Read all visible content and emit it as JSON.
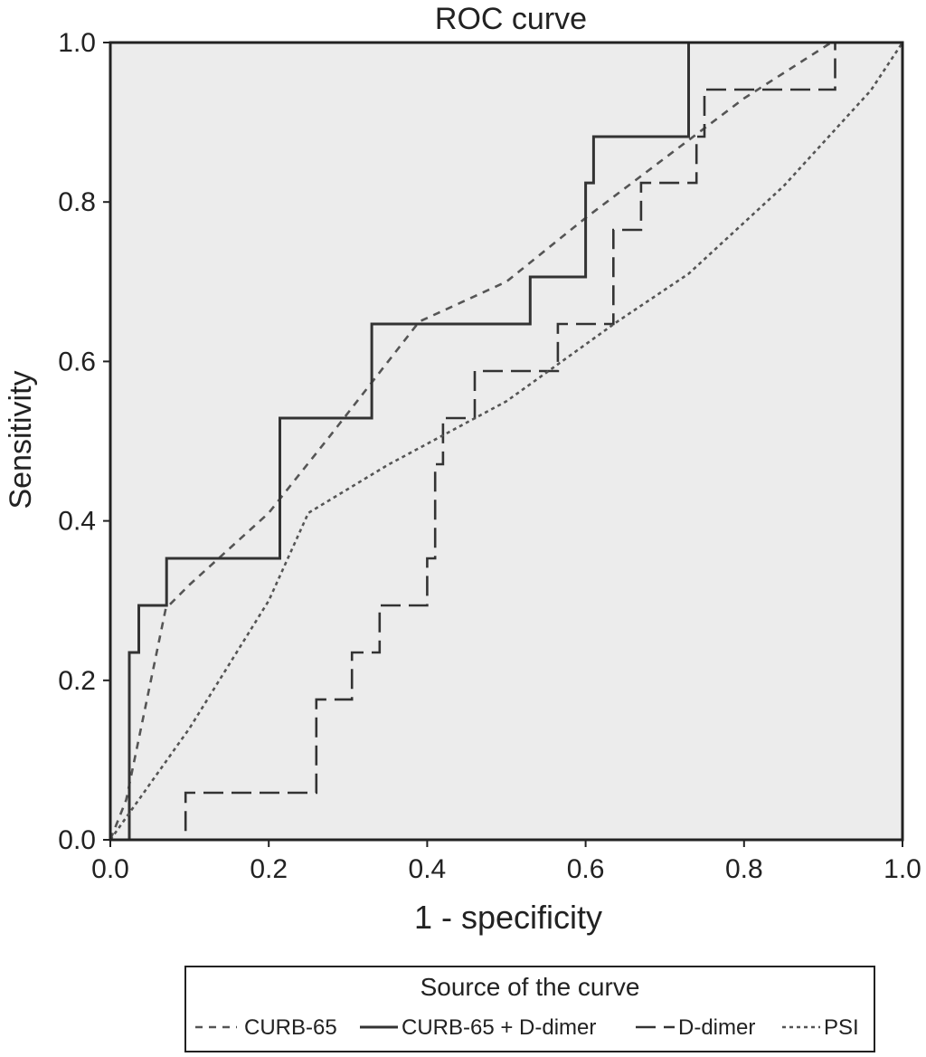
{
  "chart_data": {
    "type": "line",
    "title": "ROC curve",
    "xlabel": "1 - specificity",
    "ylabel": "Sensitivity",
    "xlim": [
      0,
      1
    ],
    "ylim": [
      0,
      1
    ],
    "xticks": [
      "0.0",
      "0.2",
      "0.4",
      "0.6",
      "0.8",
      "1.0"
    ],
    "yticks": [
      "0.0",
      "0.2",
      "0.4",
      "0.6",
      "0.8",
      "1.0"
    ],
    "grid": false,
    "legend_title": "Source of the curve",
    "legend_position": "bottom",
    "background_color": "#ececec",
    "series": [
      {
        "name": "CURB-65",
        "dash": "short-dash",
        "color": "#555555",
        "points": [
          [
            0.0,
            0.0
          ],
          [
            0.02,
            0.05
          ],
          [
            0.07,
            0.29
          ],
          [
            0.1,
            0.32
          ],
          [
            0.2,
            0.41
          ],
          [
            0.28,
            0.51
          ],
          [
            0.39,
            0.65
          ],
          [
            0.5,
            0.7
          ],
          [
            0.6,
            0.78
          ],
          [
            0.72,
            0.87
          ],
          [
            0.8,
            0.93
          ],
          [
            0.91,
            1.0
          ],
          [
            1.0,
            1.0
          ]
        ]
      },
      {
        "name": "CURB-65 + D-dimer",
        "dash": "solid",
        "color": "#333333",
        "points": [
          [
            0.0,
            0.0
          ],
          [
            0.024,
            0.0
          ],
          [
            0.024,
            0.235
          ],
          [
            0.036,
            0.235
          ],
          [
            0.036,
            0.294
          ],
          [
            0.071,
            0.294
          ],
          [
            0.071,
            0.353
          ],
          [
            0.214,
            0.353
          ],
          [
            0.214,
            0.529
          ],
          [
            0.33,
            0.529
          ],
          [
            0.33,
            0.647
          ],
          [
            0.53,
            0.647
          ],
          [
            0.53,
            0.706
          ],
          [
            0.6,
            0.706
          ],
          [
            0.6,
            0.824
          ],
          [
            0.61,
            0.824
          ],
          [
            0.61,
            0.882
          ],
          [
            0.73,
            0.882
          ],
          [
            0.73,
            1.0
          ],
          [
            1.0,
            1.0
          ]
        ]
      },
      {
        "name": "D-dimer",
        "dash": "long-dash",
        "color": "#333333",
        "points": [
          [
            0.0,
            0.0
          ],
          [
            0.095,
            0.0
          ],
          [
            0.095,
            0.059
          ],
          [
            0.26,
            0.059
          ],
          [
            0.26,
            0.176
          ],
          [
            0.305,
            0.176
          ],
          [
            0.305,
            0.235
          ],
          [
            0.34,
            0.235
          ],
          [
            0.34,
            0.294
          ],
          [
            0.4,
            0.294
          ],
          [
            0.4,
            0.353
          ],
          [
            0.41,
            0.353
          ],
          [
            0.41,
            0.471
          ],
          [
            0.42,
            0.471
          ],
          [
            0.42,
            0.529
          ],
          [
            0.46,
            0.529
          ],
          [
            0.46,
            0.588
          ],
          [
            0.565,
            0.588
          ],
          [
            0.565,
            0.647
          ],
          [
            0.635,
            0.647
          ],
          [
            0.635,
            0.765
          ],
          [
            0.67,
            0.765
          ],
          [
            0.67,
            0.824
          ],
          [
            0.74,
            0.824
          ],
          [
            0.74,
            0.882
          ],
          [
            0.75,
            0.882
          ],
          [
            0.75,
            0.941
          ],
          [
            0.915,
            0.941
          ],
          [
            0.915,
            1.0
          ],
          [
            1.0,
            1.0
          ]
        ]
      },
      {
        "name": "PSI",
        "dash": "dotted",
        "color": "#555555",
        "points": [
          [
            0.0,
            0.0
          ],
          [
            0.1,
            0.14
          ],
          [
            0.2,
            0.3
          ],
          [
            0.25,
            0.41
          ],
          [
            0.35,
            0.47
          ],
          [
            0.5,
            0.55
          ],
          [
            0.64,
            0.65
          ],
          [
            0.73,
            0.71
          ],
          [
            0.85,
            0.82
          ],
          [
            0.96,
            0.94
          ],
          [
            1.0,
            1.0
          ]
        ]
      }
    ]
  }
}
